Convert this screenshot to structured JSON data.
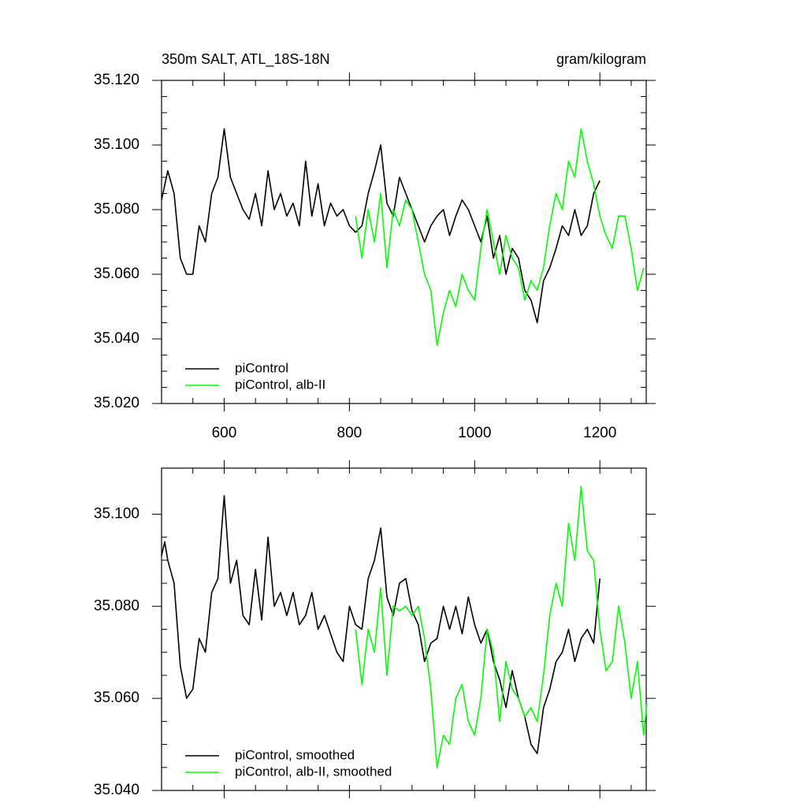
{
  "chart_data": [
    {
      "type": "line",
      "title": "350m SALT, ATL_18S-18N",
      "right_title": "gram/kilogram",
      "xlim": [
        500,
        1274
      ],
      "xticks": [
        600,
        800,
        1000,
        1200
      ],
      "ylim": [
        35.02,
        35.12
      ],
      "yticks": [
        {
          "value": 35.02,
          "label": "35.020"
        },
        {
          "value": 35.04,
          "label": "35.040"
        },
        {
          "value": 35.06,
          "label": "35.060"
        },
        {
          "value": 35.08,
          "label": "35.080"
        },
        {
          "value": 35.1,
          "label": "35.100"
        },
        {
          "value": 35.12,
          "label": "35.120"
        }
      ],
      "legend": "lower left",
      "series": [
        {
          "name": "piControl",
          "color": "#000000",
          "x": [
            500,
            510,
            520,
            530,
            540,
            550,
            560,
            570,
            580,
            590,
            600,
            610,
            620,
            630,
            640,
            650,
            660,
            670,
            680,
            690,
            700,
            710,
            720,
            730,
            740,
            750,
            760,
            770,
            780,
            790,
            800,
            810,
            820,
            830,
            840,
            850,
            860,
            870,
            880,
            890,
            900,
            910,
            920,
            930,
            940,
            950,
            960,
            970,
            980,
            990,
            1000,
            1010,
            1020,
            1030,
            1040,
            1050,
            1060,
            1070,
            1080,
            1090,
            1100,
            1110,
            1120,
            1130,
            1140,
            1150,
            1160,
            1170,
            1180,
            1190,
            1200
          ],
          "values": [
            35.083,
            35.092,
            35.085,
            35.065,
            35.06,
            35.06,
            35.075,
            35.07,
            35.085,
            35.09,
            35.105,
            35.09,
            35.085,
            35.08,
            35.077,
            35.085,
            35.075,
            35.092,
            35.08,
            35.085,
            35.078,
            35.082,
            35.075,
            35.095,
            35.078,
            35.088,
            35.075,
            35.082,
            35.078,
            35.08,
            35.075,
            35.073,
            35.075,
            35.085,
            35.092,
            35.1,
            35.082,
            35.078,
            35.09,
            35.085,
            35.08,
            35.075,
            35.07,
            35.075,
            35.078,
            35.08,
            35.072,
            35.078,
            35.083,
            35.08,
            35.075,
            35.07,
            35.078,
            35.065,
            35.072,
            35.06,
            35.068,
            35.065,
            35.055,
            35.052,
            35.045,
            35.058,
            35.062,
            35.068,
            35.075,
            35.072,
            35.08,
            35.072,
            35.075,
            35.085,
            35.089
          ]
        },
        {
          "name": "piControl, alb-II",
          "color": "#00ff00",
          "x": [
            810,
            820,
            830,
            840,
            850,
            860,
            870,
            880,
            890,
            900,
            910,
            920,
            930,
            940,
            950,
            960,
            970,
            980,
            990,
            1000,
            1010,
            1020,
            1030,
            1040,
            1050,
            1060,
            1070,
            1080,
            1090,
            1100,
            1110,
            1120,
            1130,
            1140,
            1150,
            1160,
            1170,
            1180,
            1190,
            1200,
            1210,
            1220,
            1230,
            1240,
            1250,
            1260,
            1270
          ],
          "values": [
            35.078,
            35.065,
            35.08,
            35.07,
            35.085,
            35.062,
            35.08,
            35.075,
            35.083,
            35.08,
            35.07,
            35.06,
            35.055,
            35.038,
            35.048,
            35.055,
            35.05,
            35.06,
            35.055,
            35.052,
            35.068,
            35.08,
            35.07,
            35.06,
            35.072,
            35.065,
            35.062,
            35.052,
            35.058,
            35.055,
            35.062,
            35.075,
            35.085,
            35.08,
            35.095,
            35.09,
            35.105,
            35.095,
            35.088,
            35.078,
            35.072,
            35.068,
            35.078,
            35.078,
            35.068,
            35.055,
            35.062
          ]
        }
      ]
    },
    {
      "type": "line",
      "xlim": [
        500,
        1274
      ],
      "xticks": [
        600,
        800,
        1000,
        1200
      ],
      "ylim": [
        35.04,
        35.11
      ],
      "yticks": [
        {
          "value": 35.04,
          "label": "35.040"
        },
        {
          "value": 35.06,
          "label": "35.060"
        },
        {
          "value": 35.08,
          "label": "35.080"
        },
        {
          "value": 35.1,
          "label": "35.100"
        }
      ],
      "legend": "lower left",
      "series": [
        {
          "name": "piControl, smoothed",
          "color": "#000000",
          "x": [
            500,
            505,
            510,
            520,
            530,
            540,
            550,
            560,
            570,
            580,
            590,
            600,
            610,
            620,
            630,
            640,
            650,
            660,
            670,
            680,
            690,
            700,
            710,
            720,
            730,
            740,
            750,
            760,
            770,
            780,
            790,
            800,
            810,
            820,
            830,
            840,
            850,
            860,
            870,
            880,
            890,
            900,
            910,
            920,
            930,
            940,
            950,
            960,
            970,
            980,
            990,
            1000,
            1010,
            1020,
            1030,
            1040,
            1050,
            1060,
            1070,
            1080,
            1090,
            1100,
            1110,
            1120,
            1130,
            1140,
            1150,
            1160,
            1170,
            1180,
            1190,
            1200
          ],
          "values": [
            35.091,
            35.094,
            35.09,
            35.085,
            35.067,
            35.06,
            35.062,
            35.073,
            35.07,
            35.083,
            35.086,
            35.104,
            35.085,
            35.09,
            35.078,
            35.076,
            35.088,
            35.077,
            35.095,
            35.08,
            35.083,
            35.078,
            35.083,
            35.076,
            35.078,
            35.083,
            35.075,
            35.078,
            35.074,
            35.07,
            35.068,
            35.08,
            35.076,
            35.075,
            35.086,
            35.09,
            35.097,
            35.082,
            35.078,
            35.085,
            35.086,
            35.079,
            35.076,
            35.068,
            35.072,
            35.073,
            35.08,
            35.075,
            35.08,
            35.074,
            35.082,
            35.076,
            35.072,
            35.075,
            35.068,
            35.064,
            35.058,
            35.066,
            35.06,
            35.056,
            35.05,
            35.048,
            35.058,
            35.062,
            35.068,
            35.07,
            35.075,
            35.068,
            35.073,
            35.075,
            35.072,
            35.086
          ]
        },
        {
          "name": "piControl, alb-II, smoothed",
          "color": "#00ff00",
          "x": [
            810,
            820,
            830,
            840,
            850,
            860,
            870,
            880,
            890,
            900,
            910,
            920,
            930,
            940,
            950,
            960,
            970,
            980,
            990,
            1000,
            1010,
            1020,
            1030,
            1040,
            1050,
            1060,
            1070,
            1080,
            1090,
            1100,
            1110,
            1120,
            1130,
            1140,
            1150,
            1160,
            1170,
            1180,
            1190,
            1200,
            1210,
            1220,
            1230,
            1240,
            1250,
            1260,
            1270,
            1275
          ],
          "values": [
            35.075,
            35.063,
            35.075,
            35.07,
            35.084,
            35.065,
            35.08,
            35.079,
            35.08,
            35.078,
            35.08,
            35.073,
            35.062,
            35.045,
            35.052,
            35.05,
            35.06,
            35.063,
            35.055,
            35.052,
            35.06,
            35.075,
            35.07,
            35.055,
            35.068,
            35.062,
            35.06,
            35.056,
            35.058,
            35.055,
            35.065,
            35.078,
            35.085,
            35.08,
            35.098,
            35.09,
            35.106,
            35.092,
            35.09,
            35.075,
            35.066,
            35.068,
            35.08,
            35.072,
            35.06,
            35.068,
            35.052,
            35.059
          ]
        }
      ]
    }
  ]
}
